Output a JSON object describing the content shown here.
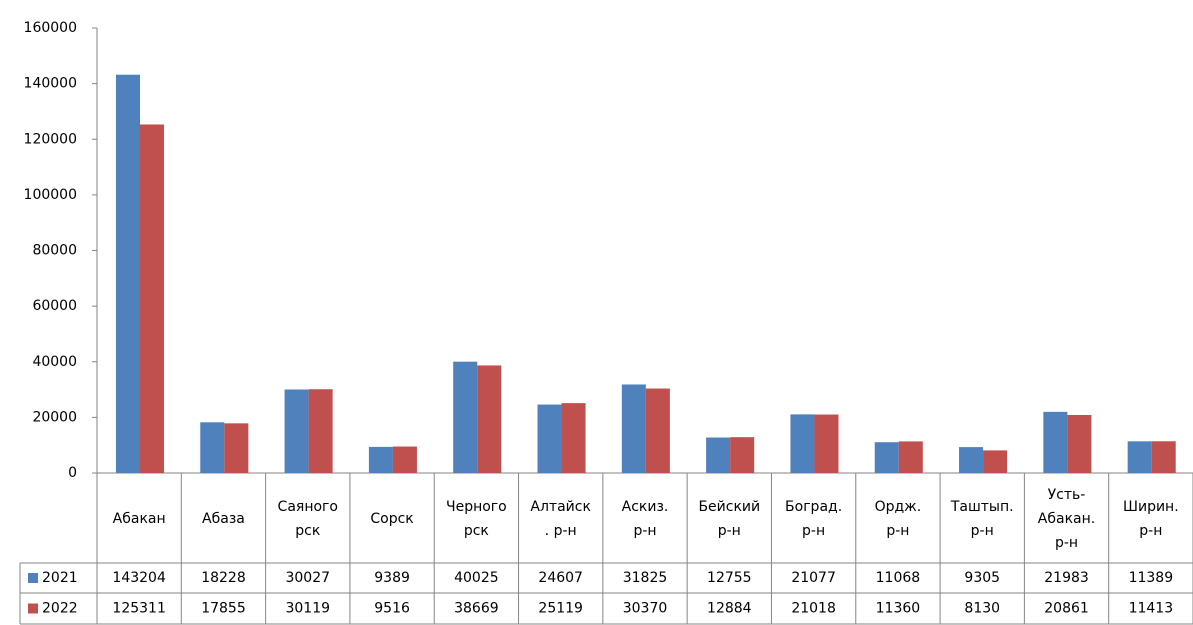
{
  "chart_data": {
    "type": "bar",
    "categories": [
      "Абакан",
      "Абаза",
      "Саяного\nрск",
      "Сорск",
      "Черного\nрск",
      "Алтайск\n. р-н",
      "Аскиз.\nр-н",
      "Бейский\nр-н",
      "Боград.\nр-н",
      "Ордж.\nр-н",
      "Таштып.\nр-н",
      "Усть-\nАбакан.\nр-н",
      "Ширин.\nр-н"
    ],
    "series": [
      {
        "name": "2021",
        "color": "#4f81bd",
        "values": [
          143204,
          18228,
          30027,
          9389,
          40025,
          24607,
          31825,
          12755,
          21077,
          11068,
          9305,
          21983,
          11389
        ]
      },
      {
        "name": "2022",
        "color": "#c0504d",
        "values": [
          125311,
          17855,
          30119,
          9516,
          38669,
          25119,
          30370,
          12884,
          21018,
          11360,
          8130,
          20861,
          11413
        ]
      }
    ],
    "ylim": [
      0,
      160000
    ],
    "yticks": [
      0,
      20000,
      40000,
      60000,
      80000,
      100000,
      120000,
      140000,
      160000
    ],
    "grid": false
  }
}
